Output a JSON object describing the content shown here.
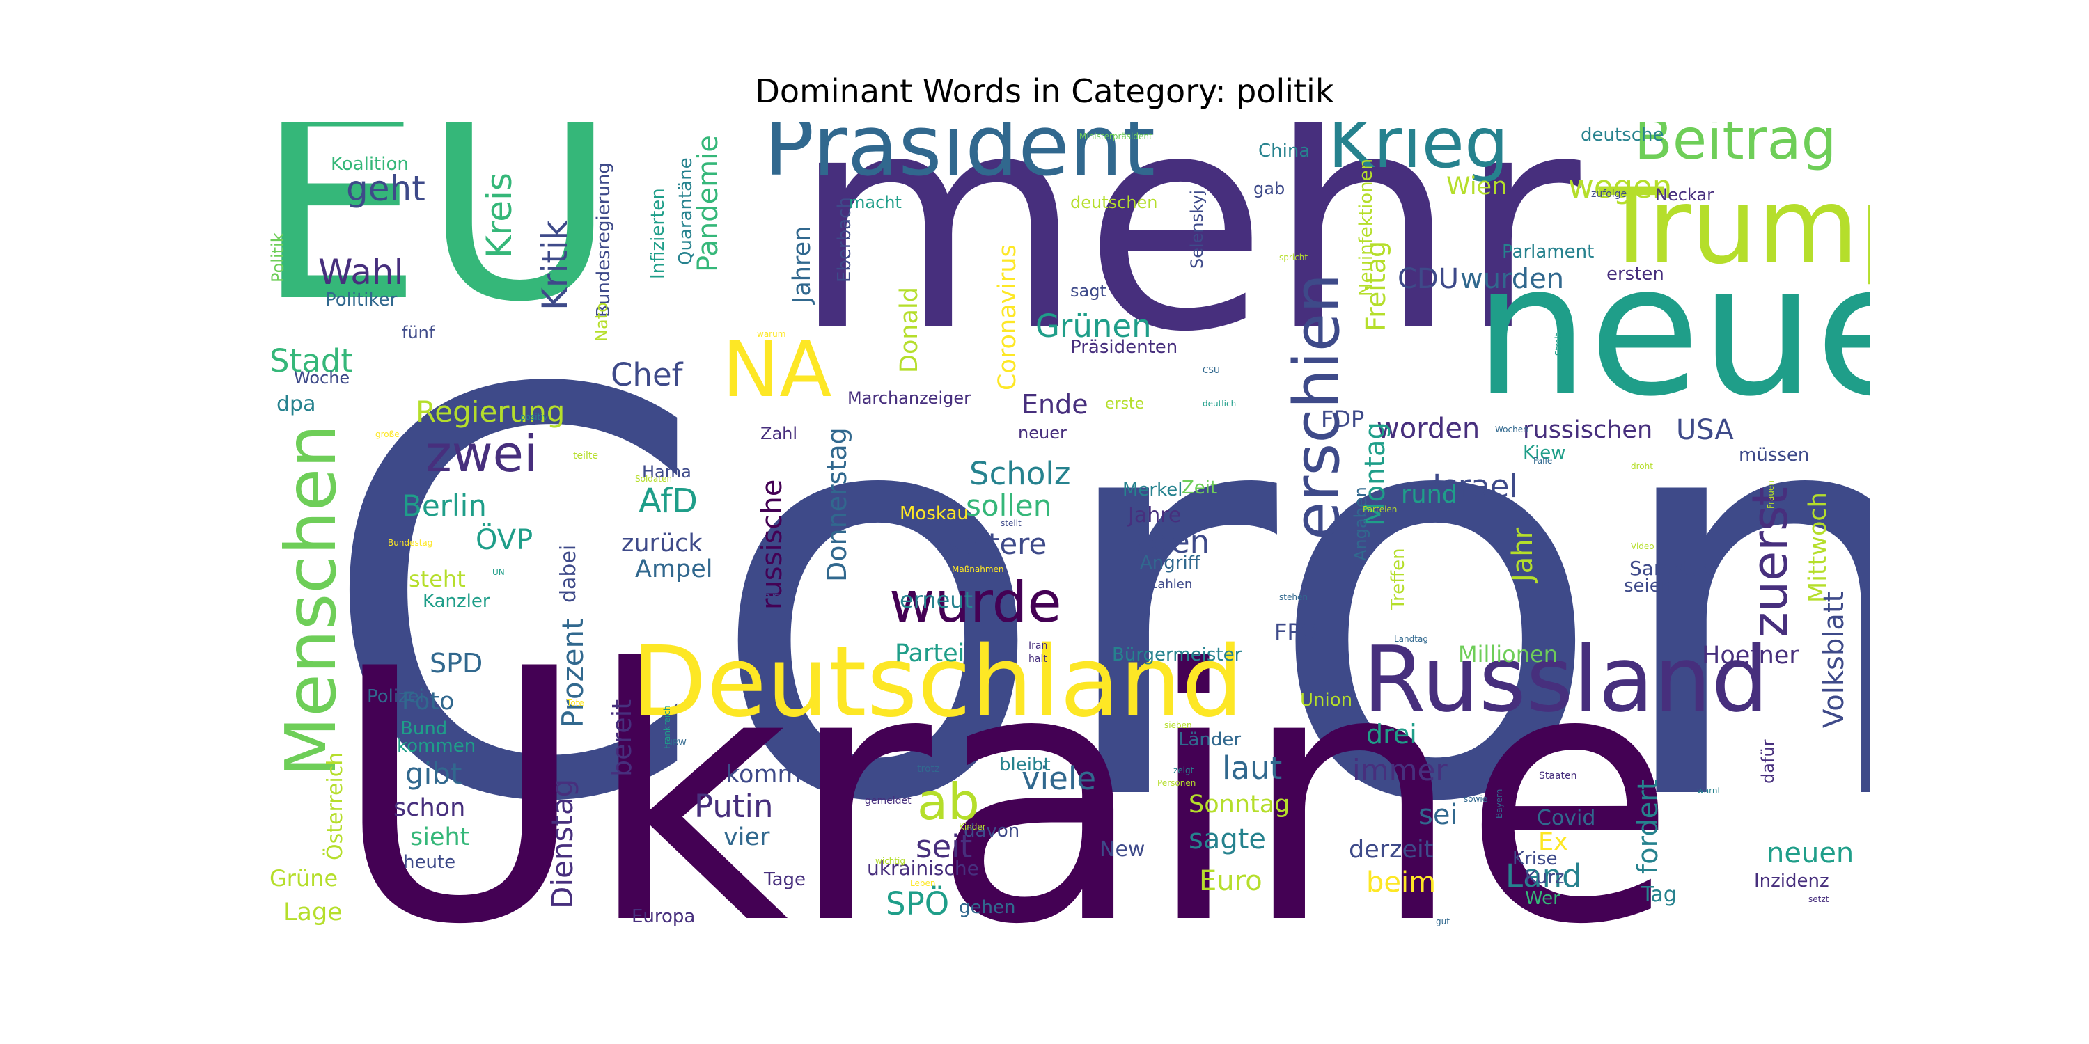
{
  "title": "Dominant Words in Category: politik",
  "palette": {
    "p1": "#440154",
    "p2": "#472f7d",
    "p3": "#3e4a89",
    "p4": "#31688e",
    "p5": "#26828e",
    "p6": "#1f9e89",
    "p7": "#35b779",
    "p8": "#6ece58",
    "p9": "#b5de2b",
    "p10": "#fde725"
  },
  "words": [
    "Corona",
    "Ukraine",
    "mehr",
    "EU",
    "neue",
    "Präsident",
    "Trump",
    "Deutschland",
    "Russland",
    "Krieg",
    "Beitrag",
    "Menschen",
    "NA",
    "erschien",
    "wurde",
    "zwei",
    "zuerst",
    "Kritik",
    "Kreis",
    "geht",
    "Wahl",
    "Politiker",
    "Stadt",
    "Chef",
    "Regierung",
    "Berlin",
    "ÖVP",
    "dabei",
    "Prozent",
    "Dienstag",
    "AfD",
    "zurück",
    "Ampel",
    "Grünen",
    "Präsidenten",
    "Ende",
    "Scholz",
    "sollen",
    "weitere",
    "Biden",
    "Jahre",
    "Israel",
    "worden",
    "russischen",
    "USA",
    "CDU",
    "wurden",
    "Freitag",
    "Montag",
    "Jahr",
    "Mittwoch",
    "Volksblatt",
    "rund",
    "wegen",
    "Wien",
    "deutsche",
    "China",
    "Pandemie",
    "Jahren",
    "Coronavirus",
    "Donald",
    "Donnerstag",
    "russische",
    "Bundesregierung",
    "Infizierten",
    "Quarantäne",
    "Koalition",
    "Politik",
    "fünf",
    "Woche",
    "dpa",
    "Zahl",
    "Hama",
    "steht",
    "Kanzler",
    "SPD",
    "Foto",
    "Bund",
    "kommen",
    "gibt",
    "schon",
    "sieht",
    "heute",
    "Grüne",
    "Lage",
    "Österreich",
    "Polizei",
    "bereit",
    "Putin",
    "kommt",
    "vier",
    "Tage",
    "Europa",
    "ab",
    "viele",
    "seit",
    "SPÖ",
    "gehen",
    "laut",
    "Sonntag",
    "sagte",
    "Euro",
    "immer",
    "drei",
    "sei",
    "derzeit",
    "beim",
    "Land",
    "neuen",
    "fordert",
    "Hoefner",
    "Millionen",
    "Bürgermeister",
    "Partei",
    "erneut",
    "Moskau",
    "Zeit",
    "Merkel",
    "Angriff",
    "Zahlen",
    "FDP",
    "FPÖ",
    "Union",
    "Länder",
    "bleibt",
    "davon",
    "Ex",
    "Covid",
    "Krise",
    "Kurz",
    "Wer",
    "Tag",
    "Inzidenz",
    "New",
    "ukrainische",
    "Samstag",
    "seien",
    "Kiew",
    "müssen",
    "Treffen",
    "Angaben",
    "Neuinfektionen",
    "Parlament",
    "ersten",
    "Selenskyj",
    "Eberbach",
    "Marchanzeiger",
    "Nato",
    "macht",
    "deutschen",
    "gab",
    "sagt",
    "Neckar",
    "Uhr",
    "erste",
    "neuer",
    "zufolge",
    "spricht",
    "Ministerpräsident",
    "deutlich",
    "Streit",
    "Wochen",
    "Falle",
    "Video",
    "Frauen",
    "droht",
    "Parteien",
    "Iran",
    "halt",
    "Landtag",
    "stehen",
    "CSU",
    "Staaten",
    "warnt",
    "Bayern",
    "sowie",
    "dafür",
    "setzt",
    "gut",
    "sieben",
    "Personen",
    "zeigt",
    "trotz",
    "gemeldet",
    "Leben",
    "Kinder",
    "NRW",
    "Frankreich",
    "Tote",
    "Bundestag",
    "große",
    "positiv",
    "warum",
    "teilte",
    "Soldaten",
    "stellt",
    "Maßnahmen",
    "UN",
    "wichtig"
  ]
}
